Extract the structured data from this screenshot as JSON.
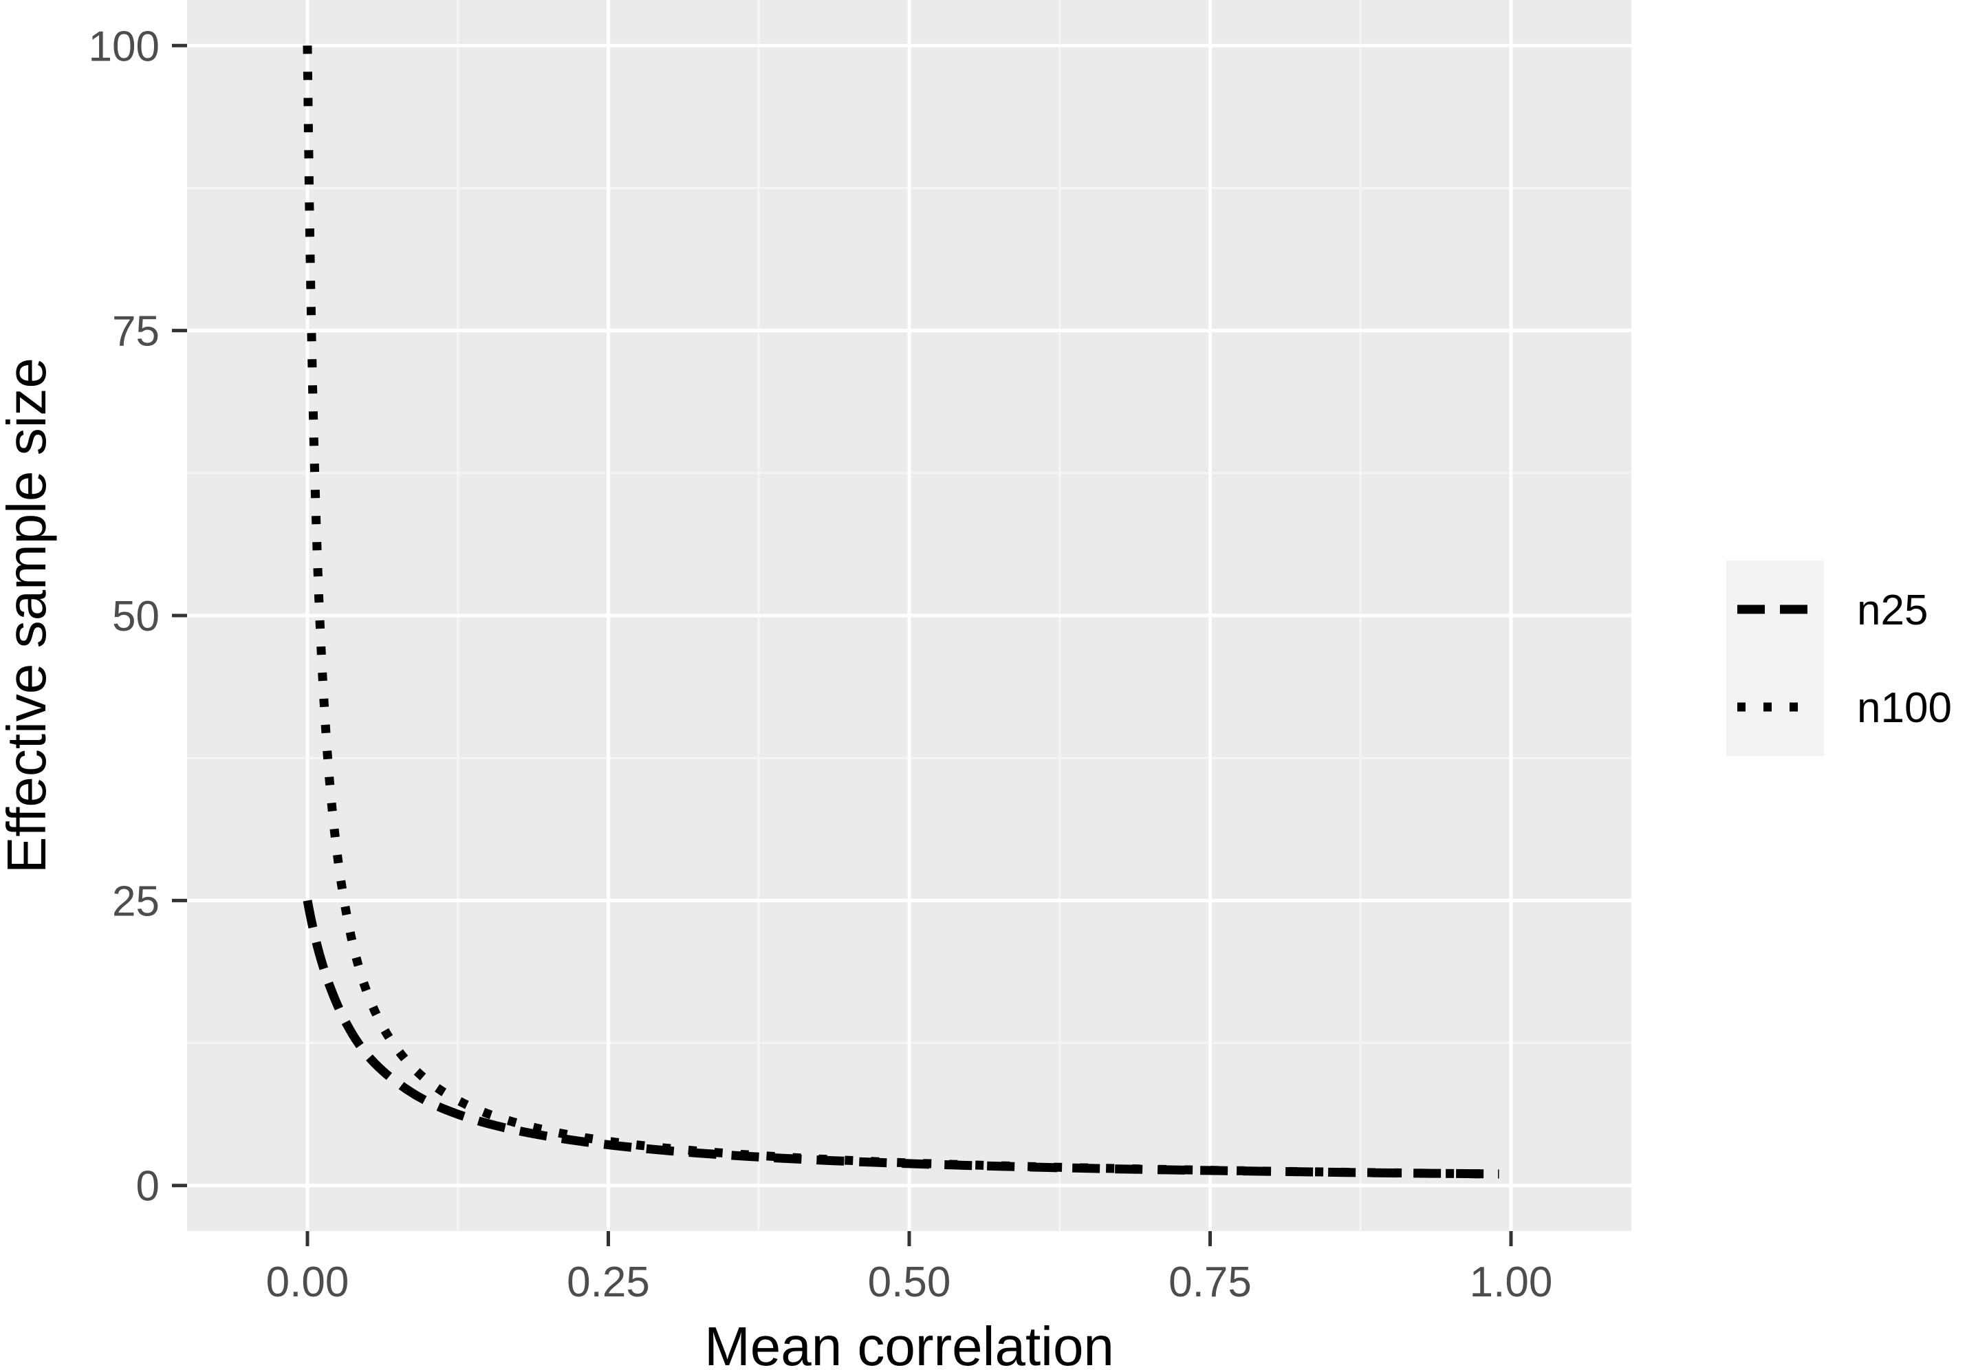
{
  "chart_data": {
    "type": "line",
    "title": "",
    "xlabel": "Mean correlation",
    "ylabel": "Effective sample size",
    "xlim": [
      -0.1,
      1.1
    ],
    "ylim": [
      -4,
      104
    ],
    "x_ticks": [
      0.0,
      0.25,
      0.5,
      0.75,
      1.0
    ],
    "x_tick_labels": [
      "0.00",
      "0.25",
      "0.50",
      "0.75",
      "1.00"
    ],
    "y_ticks": [
      0,
      25,
      50,
      75,
      100
    ],
    "y_tick_labels": [
      "0",
      "25",
      "50",
      "75",
      "100"
    ],
    "grid": true,
    "legend_position": "right",
    "series": [
      {
        "name": "n25",
        "line_style": "dashed",
        "x": [
          0.0,
          0.005,
          0.01,
          0.02,
          0.03,
          0.05,
          0.075,
          0.1,
          0.15,
          0.2,
          0.25,
          0.3,
          0.4,
          0.5,
          0.6,
          0.7,
          0.8,
          0.9,
          0.99
        ],
        "values": [
          25.0,
          22.4,
          20.3,
          17.1,
          14.7,
          11.4,
          9.0,
          7.35,
          5.43,
          4.31,
          3.57,
          3.05,
          2.36,
          1.92,
          1.62,
          1.4,
          1.24,
          1.1,
          1.01
        ]
      },
      {
        "name": "n100",
        "line_style": "dotted",
        "x": [
          0.0,
          0.001,
          0.002,
          0.004,
          0.006,
          0.008,
          0.01,
          0.015,
          0.02,
          0.03,
          0.04,
          0.05,
          0.075,
          0.1,
          0.15,
          0.2,
          0.25,
          0.3,
          0.4,
          0.5,
          0.6,
          0.7,
          0.8,
          0.9,
          0.99
        ],
        "values": [
          100.0,
          91.0,
          83.5,
          71.6,
          62.7,
          55.8,
          50.3,
          40.3,
          33.6,
          25.3,
          20.2,
          16.8,
          11.9,
          9.17,
          6.29,
          4.81,
          3.88,
          3.26,
          2.47,
          1.98,
          1.66,
          1.43,
          1.25,
          1.11,
          1.01
        ]
      }
    ],
    "colors": {
      "panel": "#ebebeb",
      "grid_major": "#ffffff",
      "grid_minor": "#f5f5f5",
      "line": "#000000",
      "legend_key_bg": "#f2f2f2",
      "tick_label": "#4d4d4d"
    }
  }
}
